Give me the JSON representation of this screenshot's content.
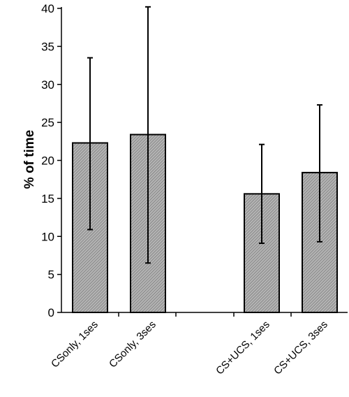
{
  "chart_data": {
    "type": "bar",
    "title": "",
    "xlabel": "",
    "ylabel": "% of time",
    "ylim": [
      0,
      40
    ],
    "yticks": [
      0,
      5,
      10,
      15,
      20,
      25,
      30,
      35,
      40
    ],
    "grid": false,
    "legend": "none",
    "bar_color": "#a6a6a6",
    "categories": [
      "CSonly, 1ses",
      "CSonly, 3ses",
      "CS+UCS, 1ses",
      "CS+UCS, 3ses"
    ],
    "values": [
      22.3,
      23.4,
      15.6,
      18.4
    ],
    "error_low": [
      10.9,
      6.5,
      9.1,
      9.3
    ],
    "error_high": [
      33.5,
      40.2,
      22.1,
      27.3
    ]
  }
}
